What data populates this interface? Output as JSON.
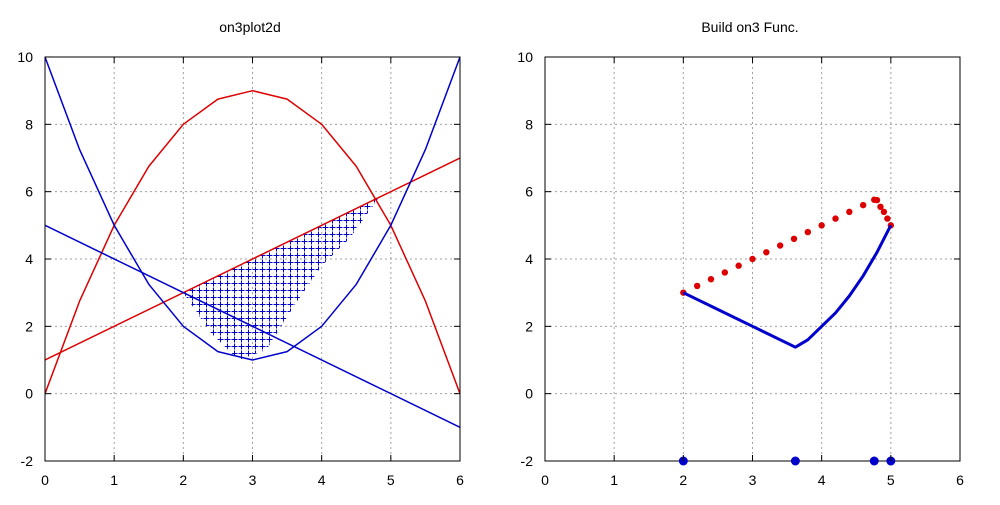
{
  "chart_data": [
    {
      "type": "line",
      "title": "on3plot2d",
      "xlim": [
        0,
        6
      ],
      "ylim": [
        -2,
        10
      ],
      "xticks": [
        0,
        1,
        2,
        3,
        4,
        5,
        6
      ],
      "yticks": [
        -2,
        0,
        2,
        4,
        6,
        8,
        10
      ],
      "grid": true,
      "series": [
        {
          "color": "#dd0000",
          "x": [
            0,
            6
          ],
          "y": [
            1,
            7
          ]
        },
        {
          "color": "#dd0000",
          "x": [
            0,
            0.5,
            1,
            1.5,
            2,
            2.5,
            3,
            3.5,
            4,
            4.5,
            5,
            5.5,
            6
          ],
          "y": [
            0,
            2.75,
            5,
            6.75,
            8,
            8.75,
            9,
            8.75,
            8,
            6.75,
            5,
            2.75,
            0
          ]
        },
        {
          "color": "#0000cc",
          "x": [
            0,
            6
          ],
          "y": [
            5,
            -1
          ]
        },
        {
          "color": "#0000cc",
          "x": [
            0,
            0.5,
            1,
            1.5,
            2,
            2.5,
            3,
            3.5,
            4,
            4.5,
            5,
            5.5,
            6
          ],
          "y": [
            10,
            7.25,
            5,
            3.25,
            2,
            1.25,
            1,
            1.25,
            2,
            3.25,
            5,
            7.25,
            10
          ]
        }
      ],
      "region": {
        "color": "#0000cc",
        "fill": "plus-hatch",
        "x": [
          2,
          2.4,
          2.8,
          3.2,
          3.62,
          4,
          4.4,
          4.8,
          5,
          4.83,
          4.4,
          4.0,
          3.6,
          3.2,
          2.8,
          2.4,
          2
        ],
        "y": [
          3,
          3.4,
          3.8,
          4.2,
          4.62,
          5,
          5.4,
          5.8,
          6.0,
          5.83,
          4.6,
          3.8,
          2.6,
          1.3,
          1.0,
          1.8,
          3
        ]
      }
    },
    {
      "type": "scatter",
      "title": "Build on3 Func.",
      "xlim": [
        0,
        6
      ],
      "ylim": [
        -2,
        10
      ],
      "xticks": [
        0,
        1,
        2,
        3,
        4,
        5,
        6
      ],
      "yticks": [
        -2,
        0,
        2,
        4,
        6,
        8,
        10
      ],
      "grid": true,
      "series": [
        {
          "color": "#dd0000",
          "marker": "dot",
          "x": [
            2.0,
            2.2,
            2.4,
            2.6,
            2.8,
            3.0,
            3.2,
            3.4,
            3.6,
            3.8,
            4.0,
            4.2,
            4.4,
            4.6,
            4.76,
            4.8,
            4.85,
            4.9,
            4.95,
            5.0
          ],
          "y": [
            3.0,
            3.2,
            3.4,
            3.6,
            3.8,
            4.0,
            4.2,
            4.4,
            4.6,
            4.8,
            5.0,
            5.2,
            5.4,
            5.6,
            5.76,
            5.75,
            5.55,
            5.4,
            5.2,
            5.0
          ]
        },
        {
          "color": "#0000cc",
          "marker": "line",
          "x": [
            2.0,
            2.5,
            3.0,
            3.62,
            3.8,
            4.0,
            4.2,
            4.4,
            4.6,
            4.8,
            5.0
          ],
          "y": [
            3.0,
            2.5,
            2.0,
            1.38,
            1.6,
            2.0,
            2.4,
            2.9,
            3.5,
            4.2,
            5.0
          ]
        },
        {
          "color": "#0000cc",
          "marker": "circle",
          "x": [
            2.0,
            3.62,
            4.76,
            5.0
          ],
          "y": [
            -2,
            -2,
            -2,
            -2
          ]
        }
      ]
    }
  ]
}
